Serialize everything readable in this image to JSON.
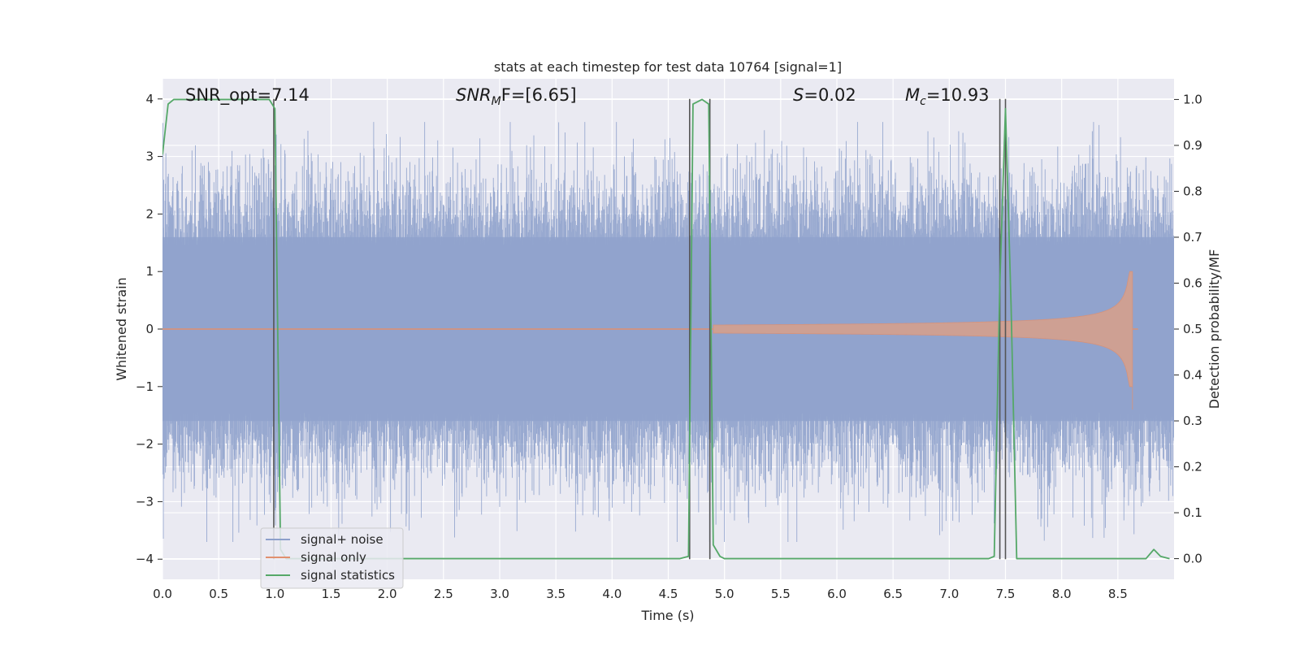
{
  "chart_data": {
    "type": "line",
    "title": "stats at each timestep for test data 10764 [signal=1]",
    "xlabel": "Time (s)",
    "ylabel": "Whitened strain",
    "y2label": "Detection probability/MF",
    "xlim": [
      0.0,
      9.0
    ],
    "ylim": [
      -4.35,
      4.35
    ],
    "y2lim": [
      -0.045,
      1.045
    ],
    "xticks": [
      "0.0",
      "0.5",
      "1.0",
      "1.5",
      "2.0",
      "2.5",
      "3.0",
      "3.5",
      "4.0",
      "4.5",
      "5.0",
      "5.5",
      "6.0",
      "6.5",
      "7.0",
      "7.5",
      "8.0",
      "8.5"
    ],
    "yticks": [
      "4",
      "3",
      "2",
      "1",
      "0",
      "−1",
      "−2",
      "−3",
      "−4"
    ],
    "y2ticks": [
      "1.0",
      "0.9",
      "0.8",
      "0.7",
      "0.6",
      "0.5",
      "0.4",
      "0.3",
      "0.2",
      "0.1",
      "0.0"
    ],
    "grid": true,
    "legend": {
      "placement": "lower-left",
      "entries": [
        {
          "label": "signal+ noise",
          "color": "#8da0cb"
        },
        {
          "label": "signal only",
          "color": "#e1906e"
        },
        {
          "label": "signal statistics",
          "color": "#55a868"
        }
      ]
    },
    "annotations": {
      "snr_opt": "SNR_opt=7.14",
      "snr_mf_main": "SNR",
      "snr_mf_sub": "M",
      "snr_mf_tail": "F=[6.65]",
      "s_italic": "S",
      "s_value": "=0.02",
      "mc_main": "M",
      "mc_sub": "c",
      "mc_value": "=10.93"
    },
    "series": [
      {
        "name": "signal statistics",
        "axis": "right",
        "x": [
          0.0,
          0.05,
          0.1,
          0.15,
          0.95,
          1.0,
          1.05,
          1.1,
          4.6,
          4.68,
          4.72,
          4.8,
          4.86,
          4.9,
          4.96,
          5.0,
          5.3,
          7.35,
          7.4,
          7.45,
          7.5,
          7.55,
          7.6,
          8.75,
          8.82,
          8.88,
          8.96
        ],
        "y": [
          0.88,
          0.99,
          1.0,
          1.0,
          1.0,
          0.98,
          0.02,
          0.0,
          0.0,
          0.005,
          0.99,
          1.0,
          0.99,
          0.03,
          0.005,
          0.0,
          0.0,
          0.0,
          0.005,
          0.6,
          0.98,
          0.55,
          0.0,
          0.0,
          0.02,
          0.005,
          0.0
        ]
      },
      {
        "name": "signal only",
        "axis": "left",
        "type": "chirp",
        "t_start": 4.9,
        "t_merger": 8.63,
        "t_end": 8.68,
        "peak_amplitude": 1.0
      },
      {
        "name": "signal+ noise",
        "axis": "left",
        "type": "noise",
        "typical_range": [
          -2.8,
          3.2
        ],
        "max": 3.6,
        "min": -3.7
      }
    ],
    "vertical_lines_x": [
      0.99,
      4.69,
      4.87,
      7.45,
      7.5
    ]
  }
}
